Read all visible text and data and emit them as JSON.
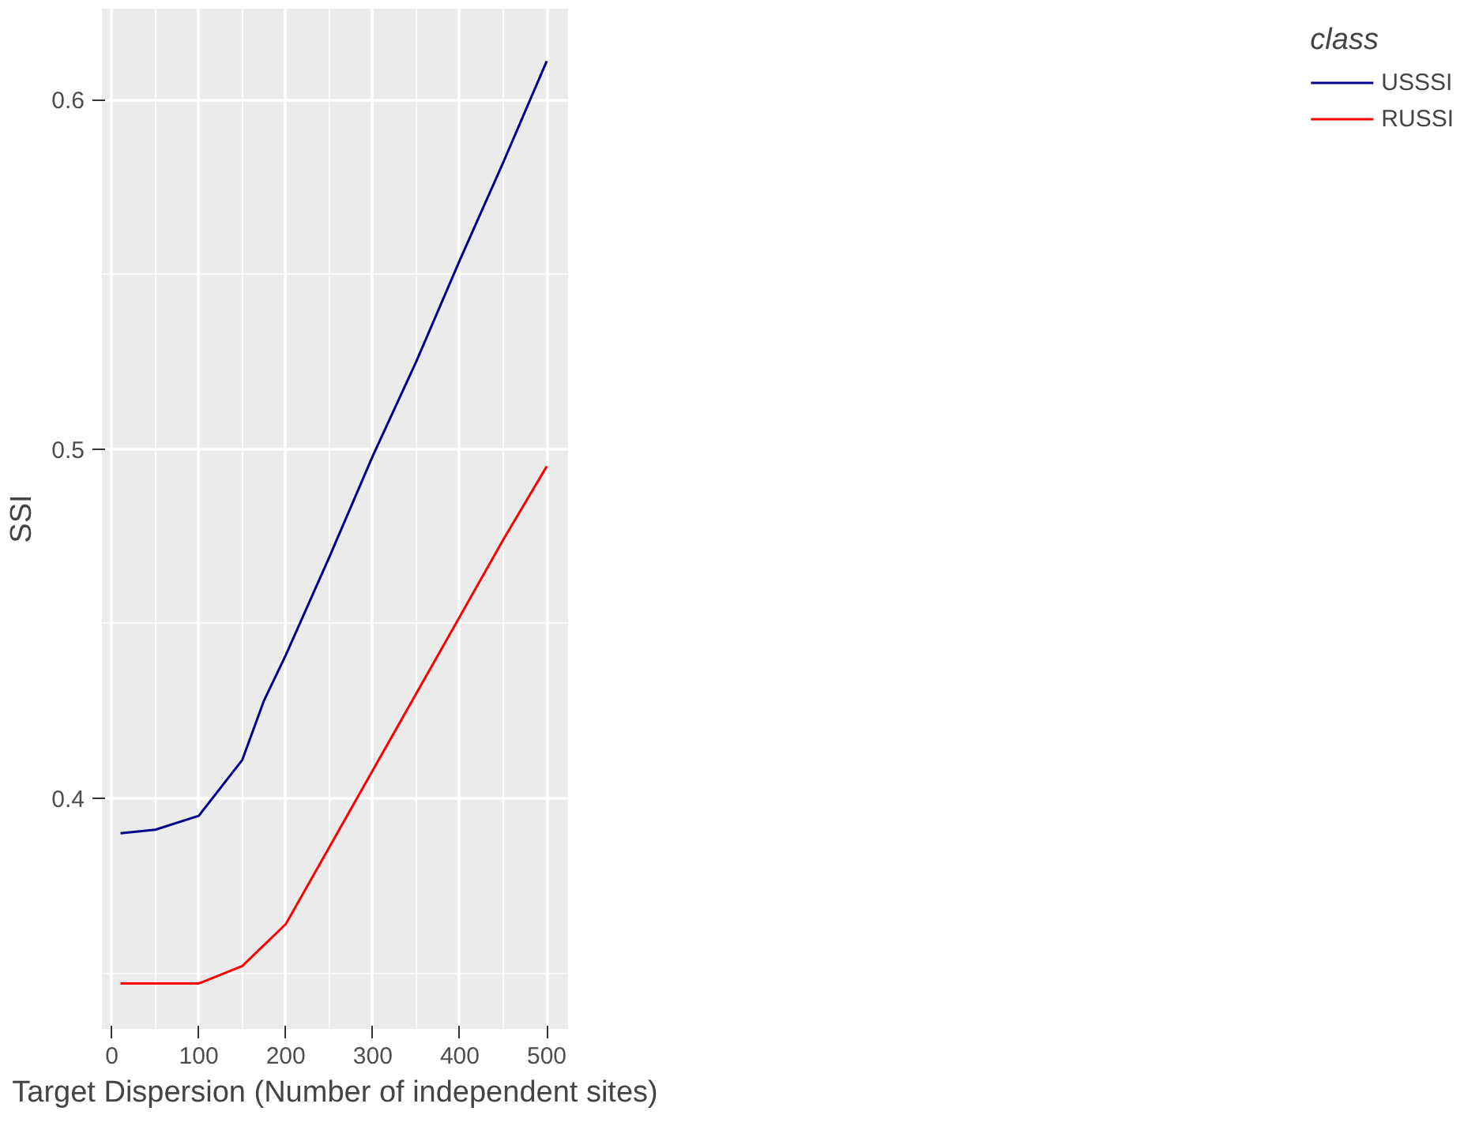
{
  "chart_data": {
    "type": "line",
    "xlabel": "Target Dispersion (Number of independent sites)",
    "ylabel": "SSI",
    "legend_title": "class",
    "legend": "right",
    "grid": true,
    "xlim": [
      -11.4,
      524.5
    ],
    "ylim": [
      0.334,
      0.626
    ],
    "xticks": [
      0,
      100,
      200,
      300,
      400,
      500
    ],
    "yticks": [
      0.4,
      0.5,
      0.6
    ],
    "series": [
      {
        "name": "USSSI",
        "color": "#00008b",
        "x": [
          10,
          50,
          100,
          150,
          175,
          200,
          250,
          300,
          350,
          400,
          450,
          500
        ],
        "values": [
          0.39,
          0.391,
          0.395,
          0.411,
          0.428,
          0.441,
          0.469,
          0.498,
          0.525,
          0.554,
          0.582,
          0.611
        ]
      },
      {
        "name": "RUSSI",
        "color": "#ff0000",
        "x": [
          10,
          50,
          100,
          150,
          200,
          250,
          300,
          350,
          400,
          450,
          500
        ],
        "values": [
          0.347,
          0.347,
          0.347,
          0.352,
          0.364,
          0.386,
          0.408,
          0.43,
          0.452,
          0.474,
          0.495
        ]
      }
    ]
  }
}
